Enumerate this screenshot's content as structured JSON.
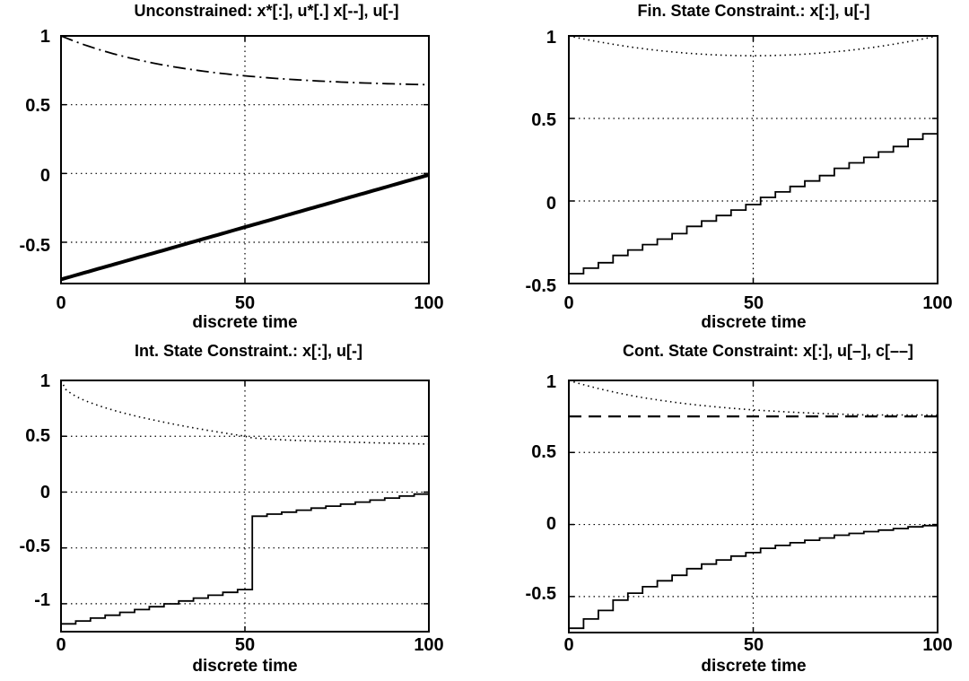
{
  "chart_data": [
    {
      "type": "line",
      "title": "Unconstrained: x*[:], u*[.]    x[--], u[-]",
      "xlabel": "discrete time",
      "ylabel": "",
      "xlim": [
        0,
        100
      ],
      "ylim": [
        -0.8,
        1
      ],
      "xticks": [
        0,
        50,
        100
      ],
      "yticks": [
        -0.5,
        0,
        0.5,
        1
      ],
      "xtick_labels": [
        "0",
        "50",
        "100"
      ],
      "ytick_labels": [
        "-0.5",
        "0",
        "0.5",
        "1"
      ],
      "grid": true,
      "series": [
        {
          "style": "dashdot",
          "kind": "exp",
          "x": [
            0,
            100
          ],
          "y": [
            1.0,
            0.645
          ],
          "rate": 3.0
        },
        {
          "style": "solid-thick",
          "kind": "linear",
          "x": [
            0,
            100
          ],
          "y": [
            -0.77,
            -0.01
          ]
        }
      ]
    },
    {
      "type": "line",
      "title": "Fin. State Constraint.:  x[:], u[-]",
      "xlabel": "discrete time",
      "ylabel": "",
      "xlim": [
        0,
        100
      ],
      "ylim": [
        -0.5,
        1
      ],
      "xticks": [
        0,
        50,
        100
      ],
      "yticks": [
        -0.5,
        0,
        0.5,
        1
      ],
      "xtick_labels": [
        "0",
        "50",
        "100"
      ],
      "ytick_labels": [
        "-0.5",
        "0",
        "0.5",
        "1"
      ],
      "grid": true,
      "series": [
        {
          "style": "dotted",
          "kind": "parabola",
          "x": [
            0,
            50,
            100
          ],
          "y": [
            1.0,
            0.88,
            1.0
          ]
        },
        {
          "style": "stairs",
          "kind": "linear",
          "x": [
            0,
            100
          ],
          "y": [
            -0.44,
            0.44
          ],
          "step": 4
        }
      ]
    },
    {
      "type": "line",
      "title": "Int. State Constraint.:  x[:], u[-]",
      "xlabel": "discrete time",
      "ylabel": "",
      "xlim": [
        0,
        100
      ],
      "ylim": [
        -1.25,
        1
      ],
      "xticks": [
        0,
        50,
        100
      ],
      "yticks": [
        -1,
        -0.5,
        0,
        0.5,
        1
      ],
      "xtick_labels": [
        "0",
        "50",
        "100"
      ],
      "ytick_labels": [
        "-1",
        "-0.5",
        "0",
        "0.5",
        "1"
      ],
      "grid": true,
      "series": [
        {
          "style": "dotted",
          "kind": "exp-piecewise",
          "x": [
            0,
            50,
            100
          ],
          "y": [
            1.0,
            0.5,
            0.43
          ]
        },
        {
          "style": "stairs",
          "kind": "linear-jump",
          "x": [
            0,
            50,
            51,
            100
          ],
          "y": [
            -1.18,
            -0.86,
            -0.22,
            0.0
          ],
          "step": 4
        }
      ]
    },
    {
      "type": "line",
      "title": "Cont. State Constraint: x[:], u[–], c[––]",
      "xlabel": "discrete time",
      "ylabel": "",
      "xlim": [
        0,
        100
      ],
      "ylim": [
        -0.75,
        1
      ],
      "xticks": [
        0,
        50,
        100
      ],
      "yticks": [
        -0.5,
        0,
        0.5,
        1
      ],
      "xtick_labels": [
        "0",
        "50",
        "100"
      ],
      "ytick_labels": [
        "-0.5",
        "0",
        "0.5",
        "1"
      ],
      "grid": true,
      "series": [
        {
          "style": "dotted",
          "kind": "exp-clip",
          "x": [
            0,
            100
          ],
          "y": [
            1.0,
            0.75
          ],
          "rate": 3.0
        },
        {
          "style": "dashed",
          "kind": "const",
          "x": [
            0,
            100
          ],
          "y": [
            0.75,
            0.75
          ]
        },
        {
          "style": "stairs",
          "kind": "exp",
          "x": [
            0,
            100
          ],
          "y": [
            -0.72,
            0.0
          ],
          "rate": 2.2,
          "step": 4
        }
      ]
    }
  ]
}
